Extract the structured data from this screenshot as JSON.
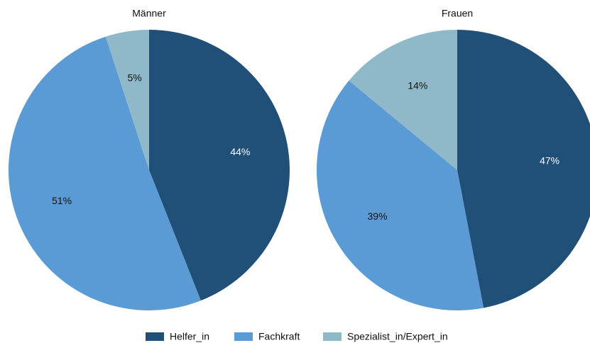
{
  "chart_data": [
    {
      "type": "pie",
      "title": "Männer",
      "categories": [
        "Helfer_in",
        "Fachkraft",
        "Spezialist_in/Expert_in"
      ],
      "values": [
        44,
        51,
        5
      ],
      "value_labels": [
        "44%",
        "51%",
        "5%"
      ],
      "colors": [
        "#204f78",
        "#5b9bd5",
        "#8fb8c9"
      ]
    },
    {
      "type": "pie",
      "title": "Frauen",
      "categories": [
        "Helfer_in",
        "Fachkraft",
        "Spezialist_in/Expert_in"
      ],
      "values": [
        47,
        39,
        14
      ],
      "value_labels": [
        "47%",
        "39%",
        "14%"
      ],
      "colors": [
        "#204f78",
        "#5b9bd5",
        "#8fb8c9"
      ]
    }
  ]
}
